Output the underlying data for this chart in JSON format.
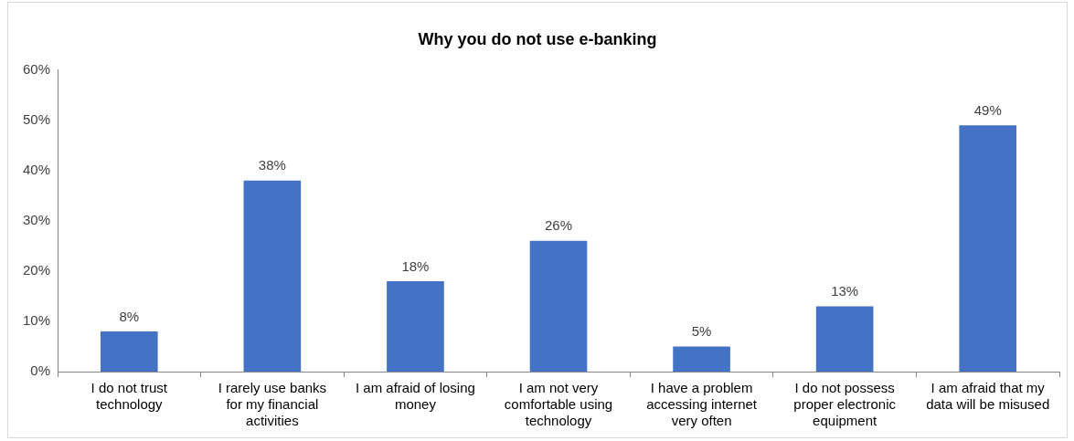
{
  "chart_data": {
    "type": "bar",
    "title": "Why you do not use e-banking",
    "categories": [
      "I do not trust technology",
      "I rarely use banks for my financial activities",
      "I am afraid of losing money",
      "I am not very comfortable using technology",
      "I have a problem accessing internet very often",
      "I do not possess proper electronic equipment",
      "I am afraid that my data will be misused"
    ],
    "values": [
      8,
      38,
      18,
      26,
      5,
      13,
      49
    ],
    "value_labels": [
      "8%",
      "38%",
      "18%",
      "26%",
      "5%",
      "13%",
      "49%"
    ],
    "color": "#4472c4",
    "ylim": [
      0,
      60
    ],
    "yticks": [
      {
        "value": 0,
        "label": "0%"
      },
      {
        "value": 10,
        "label": "10%"
      },
      {
        "value": 20,
        "label": "20%"
      },
      {
        "value": 30,
        "label": "30%"
      },
      {
        "value": 40,
        "label": "40%"
      },
      {
        "value": 50,
        "label": "50%"
      },
      {
        "value": 60,
        "label": "60%"
      }
    ],
    "grid": false,
    "legend": false
  }
}
